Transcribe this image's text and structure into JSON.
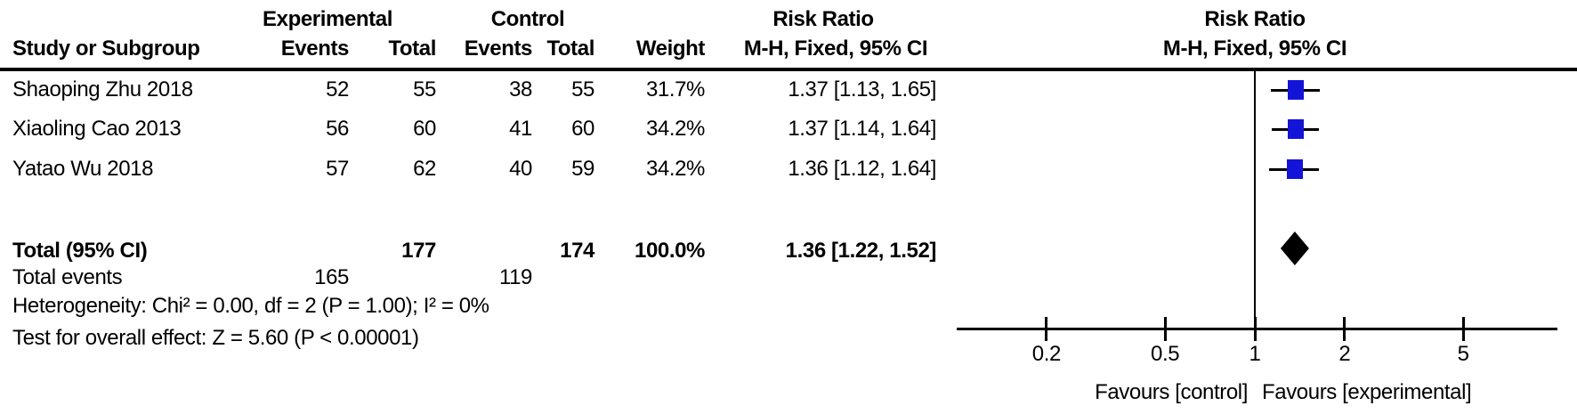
{
  "table": {
    "group_headers": {
      "experimental": "Experimental",
      "control": "Control",
      "risk_ratio_left": "Risk Ratio",
      "risk_ratio_right": "Risk Ratio"
    },
    "column_headers": {
      "study": "Study or Subgroup",
      "events_exp": "Events",
      "total_exp": "Total",
      "events_ctrl": "Events",
      "total_ctrl": "Total",
      "weight": "Weight",
      "ci_left": "M-H, Fixed, 95% CI",
      "ci_right": "M-H, Fixed, 95% CI"
    },
    "rows": [
      {
        "study": "Shaoping Zhu 2018",
        "events_exp": "52",
        "total_exp": "55",
        "events_ctrl": "38",
        "total_ctrl": "55",
        "weight": "31.7%",
        "ci": "1.37 [1.13, 1.65]"
      },
      {
        "study": "Xiaoling Cao 2013",
        "events_exp": "56",
        "total_exp": "60",
        "events_ctrl": "41",
        "total_ctrl": "60",
        "weight": "34.2%",
        "ci": "1.37 [1.14, 1.64]"
      },
      {
        "study": "Yatao Wu 2018",
        "events_exp": "57",
        "total_exp": "62",
        "events_ctrl": "40",
        "total_ctrl": "59",
        "weight": "34.2%",
        "ci": "1.36 [1.12, 1.64]"
      }
    ],
    "total_row": {
      "label": "Total (95% CI)",
      "total_exp": "177",
      "total_ctrl": "174",
      "weight": "100.0%",
      "ci": "1.36 [1.22, 1.52]"
    },
    "total_events": {
      "label": "Total events",
      "events_exp": "165",
      "events_ctrl": "119"
    },
    "heterogeneity": "Heterogeneity: Chi² = 0.00, df = 2 (P = 1.00); I² = 0%",
    "overall_effect": "Test for overall effect: Z = 5.60 (P < 0.00001)"
  },
  "chart_data": {
    "type": "forest",
    "effect_measure": "Risk Ratio",
    "model": "M-H, Fixed, 95% CI",
    "x_scale": "log",
    "axis_ticks": [
      0.2,
      0.5,
      1,
      2,
      5
    ],
    "studies": [
      {
        "name": "Shaoping Zhu 2018",
        "rr": 1.37,
        "ci_low": 1.13,
        "ci_high": 1.65,
        "weight_pct": 31.7
      },
      {
        "name": "Xiaoling Cao 2013",
        "rr": 1.37,
        "ci_low": 1.14,
        "ci_high": 1.64,
        "weight_pct": 34.2
      },
      {
        "name": "Yatao Wu 2018",
        "rr": 1.36,
        "ci_low": 1.12,
        "ci_high": 1.64,
        "weight_pct": 34.2
      }
    ],
    "total": {
      "rr": 1.36,
      "ci_low": 1.22,
      "ci_high": 1.52
    },
    "favours_left": "Favours [control]",
    "favours_right": "Favours [experimental]",
    "marker_color": "#1414d8",
    "diamond_color": "#000000"
  }
}
